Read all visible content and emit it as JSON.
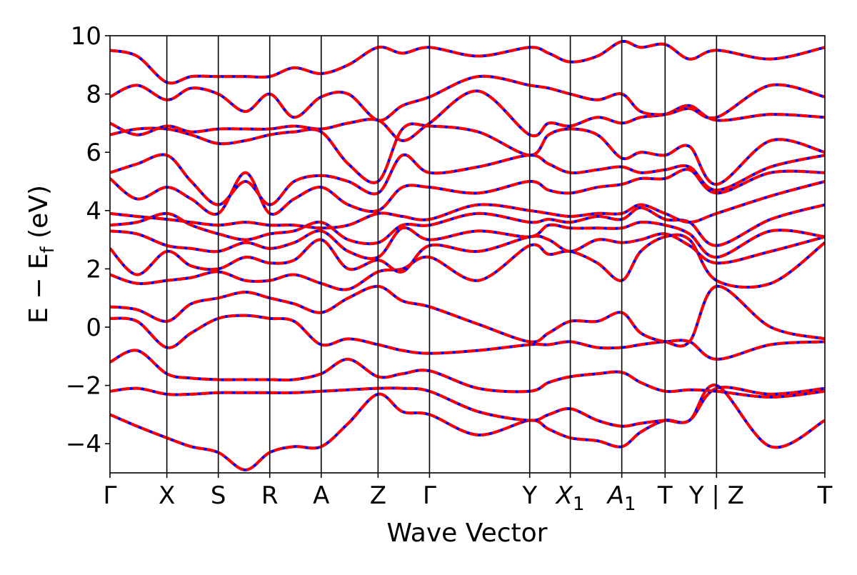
{
  "chart_data": {
    "type": "line",
    "title": "",
    "xlabel": "Wave Vector",
    "ylabel": "E − E",
    "ylabel_sub": "f",
    "ylabel_unit": " (eV)",
    "ylim": [
      -5,
      10
    ],
    "yticks": [
      -4,
      -2,
      0,
      2,
      4,
      6,
      8,
      10
    ],
    "ytick_labels": [
      "−4",
      "−2",
      "0",
      "2",
      "4",
      "6",
      "8",
      "10"
    ],
    "xlim": [
      0,
      13.2
    ],
    "kpoints": [
      {
        "label": "Γ",
        "x": 0.0
      },
      {
        "label": "X",
        "x": 1.05
      },
      {
        "label": "S",
        "x": 2.0
      },
      {
        "label": "R",
        "x": 2.95
      },
      {
        "label": "A",
        "x": 3.9
      },
      {
        "label": "Z",
        "x": 4.95
      },
      {
        "label": "Γ",
        "x": 5.9
      },
      {
        "label": "Y",
        "x": 7.75
      },
      {
        "label": "X",
        "sub": "1",
        "italic": true,
        "x": 8.5
      },
      {
        "label": "A",
        "sub": "1",
        "italic": true,
        "x": 9.45
      },
      {
        "label": "T",
        "x": 10.25
      },
      {
        "label": "Y | Z",
        "x": 11.2
      },
      {
        "label": "T",
        "x": 13.2
      }
    ],
    "grid": false,
    "legend": "none",
    "colors": {
      "dft": "#0000ff",
      "model": "#ff0000"
    },
    "series": [
      {
        "x": [
          0,
          0.5,
          1.05,
          1.5,
          2.0,
          2.5,
          2.95,
          3.4,
          3.9,
          4.4,
          4.95,
          5.4,
          5.9,
          6.8,
          7.75,
          8.1,
          8.5,
          9.0,
          9.45,
          9.8,
          10.25,
          10.7,
          11.2,
          12.2,
          13.2
        ],
        "y": [
          -3.0,
          -3.4,
          -3.8,
          -4.1,
          -4.3,
          -4.9,
          -4.3,
          -4.1,
          -4.1,
          -3.3,
          -2.3,
          -2.9,
          -3.0,
          -3.7,
          -3.2,
          -3.5,
          -3.8,
          -3.9,
          -4.1,
          -3.6,
          -3.2,
          -3.2,
          -2.0,
          -4.1,
          -3.2
        ]
      },
      {
        "x": [
          0,
          0.5,
          1.05,
          1.5,
          2.0,
          2.5,
          2.95,
          3.4,
          3.9,
          4.4,
          4.95,
          5.4,
          5.9,
          6.8,
          7.75,
          8.1,
          8.5,
          9.0,
          9.45,
          9.8,
          10.25,
          10.7,
          11.2,
          12.2,
          13.2
        ],
        "y": [
          -2.2,
          -2.1,
          -2.3,
          -2.3,
          -2.25,
          -2.25,
          -2.25,
          -2.25,
          -2.2,
          -2.15,
          -2.1,
          -2.1,
          -2.2,
          -2.9,
          -3.2,
          -3.0,
          -2.8,
          -3.2,
          -3.4,
          -3.3,
          -3.2,
          -3.2,
          -2.1,
          -2.3,
          -2.1
        ]
      },
      {
        "x": [
          0,
          0.5,
          1.05,
          1.5,
          2.0,
          2.5,
          2.95,
          3.4,
          3.9,
          4.4,
          4.95,
          5.4,
          5.9,
          6.8,
          7.75,
          8.1,
          8.5,
          9.0,
          9.45,
          9.8,
          10.25,
          10.7,
          11.2,
          12.2,
          13.2
        ],
        "y": [
          -1.2,
          -0.8,
          -1.6,
          -1.75,
          -1.8,
          -1.8,
          -1.8,
          -1.8,
          -1.6,
          -1.1,
          -1.7,
          -1.6,
          -1.5,
          -2.1,
          -2.2,
          -1.9,
          -1.7,
          -1.6,
          -1.55,
          -1.9,
          -2.2,
          -2.15,
          -2.2,
          -2.4,
          -2.2
        ]
      },
      {
        "x": [
          0,
          0.5,
          1.05,
          1.5,
          2.0,
          2.5,
          2.95,
          3.4,
          3.9,
          4.4,
          4.95,
          5.4,
          5.9,
          6.8,
          7.75,
          8.1,
          8.5,
          9.0,
          9.45,
          9.8,
          10.25,
          10.7,
          11.2,
          12.2,
          13.2
        ],
        "y": [
          0.3,
          0.2,
          -0.7,
          -0.2,
          0.3,
          0.4,
          0.3,
          0.2,
          -0.6,
          -0.4,
          -0.6,
          -0.8,
          -0.9,
          -0.8,
          -0.6,
          -0.6,
          -0.5,
          -0.7,
          -0.7,
          -0.6,
          -0.5,
          -0.5,
          -1.1,
          -0.6,
          -0.5
        ]
      },
      {
        "x": [
          0,
          0.5,
          1.05,
          1.5,
          2.0,
          2.5,
          2.95,
          3.4,
          3.9,
          4.4,
          4.95,
          5.4,
          5.9,
          6.8,
          7.75,
          8.1,
          8.5,
          9.0,
          9.45,
          9.8,
          10.25,
          10.7,
          11.2,
          12.2,
          13.2
        ],
        "y": [
          0.7,
          0.6,
          0.2,
          0.8,
          1.0,
          1.2,
          1.0,
          0.8,
          0.5,
          1.0,
          1.4,
          0.9,
          0.7,
          0.1,
          -0.5,
          -0.2,
          0.2,
          0.2,
          0.5,
          -0.2,
          -0.5,
          -0.5,
          1.4,
          0.0,
          -0.4
        ]
      },
      {
        "x": [
          0,
          0.5,
          1.05,
          1.5,
          2.0,
          2.5,
          2.95,
          3.4,
          3.9,
          4.4,
          4.95,
          5.4,
          5.9,
          6.8,
          7.75,
          8.1,
          8.5,
          9.0,
          9.45,
          9.8,
          10.25,
          10.7,
          11.2,
          12.2,
          13.2
        ],
        "y": [
          1.8,
          1.5,
          1.6,
          1.7,
          1.9,
          1.6,
          1.6,
          1.8,
          1.5,
          1.3,
          1.9,
          2.0,
          2.4,
          1.6,
          2.8,
          2.5,
          2.6,
          2.2,
          1.6,
          2.6,
          3.1,
          3.0,
          1.6,
          1.5,
          2.9
        ]
      },
      {
        "x": [
          0,
          0.5,
          1.05,
          1.5,
          2.0,
          2.5,
          2.95,
          3.4,
          3.9,
          4.4,
          4.95,
          5.4,
          5.9,
          6.8,
          7.75,
          8.1,
          8.5,
          9.0,
          9.45,
          9.8,
          10.25,
          10.7,
          11.2,
          12.2,
          13.2
        ],
        "y": [
          2.7,
          1.8,
          2.6,
          2.1,
          2.0,
          2.4,
          2.2,
          2.3,
          3.0,
          2.0,
          2.3,
          1.9,
          2.8,
          2.6,
          3.1,
          3.0,
          2.6,
          3.0,
          2.9,
          3.0,
          3.2,
          2.8,
          2.2,
          2.6,
          3.1
        ]
      },
      {
        "x": [
          0,
          0.5,
          1.05,
          1.5,
          2.0,
          2.5,
          2.95,
          3.4,
          3.9,
          4.4,
          4.95,
          5.4,
          5.9,
          6.8,
          7.75,
          8.1,
          8.5,
          9.0,
          9.45,
          9.8,
          10.25,
          10.7,
          11.2,
          12.2,
          13.2
        ],
        "y": [
          3.3,
          3.2,
          2.8,
          2.7,
          2.6,
          2.9,
          2.7,
          2.9,
          3.3,
          2.6,
          2.4,
          3.4,
          3.0,
          3.3,
          3.1,
          3.5,
          3.4,
          3.4,
          3.4,
          3.6,
          3.5,
          3.2,
          2.4,
          3.3,
          3.1
        ]
      },
      {
        "x": [
          0,
          0.5,
          1.05,
          1.5,
          2.0,
          2.5,
          2.95,
          3.4,
          3.9,
          4.4,
          4.95,
          5.4,
          5.9,
          6.8,
          7.75,
          8.1,
          8.5,
          9.0,
          9.45,
          9.8,
          10.25,
          10.7,
          11.2,
          12.2,
          13.2
        ],
        "y": [
          3.5,
          3.6,
          3.9,
          3.5,
          3.2,
          3.0,
          3.2,
          3.3,
          3.6,
          3.0,
          2.9,
          3.5,
          3.5,
          3.9,
          3.6,
          3.7,
          3.6,
          3.8,
          3.7,
          4.1,
          3.7,
          3.6,
          2.8,
          3.7,
          4.2
        ]
      },
      {
        "x": [
          0,
          0.5,
          1.05,
          1.5,
          2.0,
          2.5,
          2.95,
          3.4,
          3.9,
          4.4,
          4.95,
          5.4,
          5.9,
          6.8,
          7.75,
          8.1,
          8.5,
          9.0,
          9.45,
          9.8,
          10.25,
          10.7,
          11.2,
          12.2,
          13.2
        ],
        "y": [
          3.9,
          3.8,
          3.7,
          3.6,
          3.5,
          3.6,
          3.5,
          3.5,
          3.4,
          3.5,
          3.9,
          3.8,
          3.7,
          4.2,
          4.0,
          3.9,
          3.8,
          3.9,
          3.9,
          4.2,
          3.9,
          3.6,
          3.9,
          4.5,
          5.0
        ]
      },
      {
        "x": [
          0,
          0.5,
          1.05,
          1.5,
          2.0,
          2.5,
          2.95,
          3.4,
          3.9,
          4.4,
          4.95,
          5.4,
          5.9,
          6.8,
          7.75,
          8.1,
          8.5,
          9.0,
          9.45,
          9.8,
          10.25,
          10.7,
          11.2,
          12.2,
          13.2
        ],
        "y": [
          5.1,
          4.4,
          4.8,
          4.4,
          3.9,
          5.3,
          3.9,
          4.4,
          4.8,
          4.2,
          4.0,
          4.8,
          4.8,
          4.6,
          5.0,
          4.7,
          4.6,
          4.8,
          4.9,
          5.1,
          5.1,
          5.4,
          4.6,
          5.3,
          5.3
        ]
      },
      {
        "x": [
          0,
          0.5,
          1.05,
          1.5,
          2.0,
          2.5,
          2.95,
          3.4,
          3.9,
          4.4,
          4.95,
          5.4,
          5.9,
          6.8,
          7.75,
          8.1,
          8.5,
          9.0,
          9.45,
          9.8,
          10.25,
          10.7,
          11.2,
          12.2,
          13.2
        ],
        "y": [
          5.3,
          5.6,
          5.9,
          5.0,
          4.2,
          5.0,
          4.2,
          5.0,
          5.2,
          5.0,
          4.6,
          5.9,
          5.3,
          5.5,
          5.9,
          5.6,
          5.3,
          5.4,
          5.5,
          5.3,
          5.4,
          5.5,
          4.7,
          5.5,
          5.9
        ]
      },
      {
        "x": [
          0,
          0.5,
          1.05,
          1.5,
          2.0,
          2.5,
          2.95,
          3.4,
          3.9,
          4.4,
          4.95,
          5.4,
          5.9,
          6.8,
          7.75,
          8.1,
          8.5,
          9.0,
          9.45,
          9.8,
          10.25,
          10.7,
          11.2,
          12.2,
          13.2
        ],
        "y": [
          6.6,
          6.8,
          6.8,
          6.6,
          6.3,
          6.4,
          6.6,
          6.7,
          6.7,
          5.6,
          5.0,
          6.8,
          6.9,
          6.7,
          5.9,
          6.6,
          6.8,
          6.6,
          5.8,
          6.0,
          5.9,
          6.2,
          4.9,
          6.4,
          6.0
        ]
      },
      {
        "x": [
          0,
          0.5,
          1.05,
          1.5,
          2.0,
          2.5,
          2.95,
          3.4,
          3.9,
          4.4,
          4.95,
          5.4,
          5.9,
          6.8,
          7.75,
          8.1,
          8.5,
          9.0,
          9.45,
          9.8,
          10.25,
          10.7,
          11.2,
          12.2,
          13.2
        ],
        "y": [
          7.0,
          6.6,
          6.9,
          6.7,
          6.8,
          6.8,
          6.8,
          6.9,
          6.8,
          7.0,
          7.1,
          6.4,
          7.0,
          8.1,
          6.6,
          7.0,
          6.9,
          7.2,
          7.0,
          7.2,
          7.3,
          7.6,
          7.1,
          7.3,
          7.2
        ]
      },
      {
        "x": [
          0,
          0.5,
          1.05,
          1.5,
          2.0,
          2.5,
          2.95,
          3.4,
          3.9,
          4.4,
          4.95,
          5.4,
          5.9,
          6.8,
          7.75,
          8.1,
          8.5,
          9.0,
          9.45,
          9.8,
          10.25,
          10.7,
          11.2,
          12.2,
          13.2
        ],
        "y": [
          7.9,
          8.3,
          7.8,
          8.2,
          8.0,
          7.4,
          8.0,
          7.2,
          7.9,
          8.0,
          7.1,
          7.6,
          7.9,
          8.6,
          8.3,
          8.2,
          8.0,
          7.8,
          8.0,
          7.4,
          7.3,
          7.5,
          7.2,
          8.3,
          7.9
        ]
      },
      {
        "x": [
          0,
          0.5,
          1.05,
          1.5,
          2.0,
          2.5,
          2.95,
          3.4,
          3.9,
          4.4,
          4.95,
          5.4,
          5.9,
          6.8,
          7.75,
          8.1,
          8.5,
          9.0,
          9.45,
          9.8,
          10.25,
          10.7,
          11.2,
          12.2,
          13.2
        ],
        "y": [
          9.5,
          9.3,
          8.4,
          8.6,
          8.6,
          8.6,
          8.6,
          8.9,
          8.7,
          9.0,
          9.6,
          9.4,
          9.6,
          9.3,
          9.6,
          9.4,
          9.1,
          9.3,
          9.8,
          9.6,
          9.7,
          9.2,
          9.5,
          9.2,
          9.6
        ]
      }
    ]
  }
}
